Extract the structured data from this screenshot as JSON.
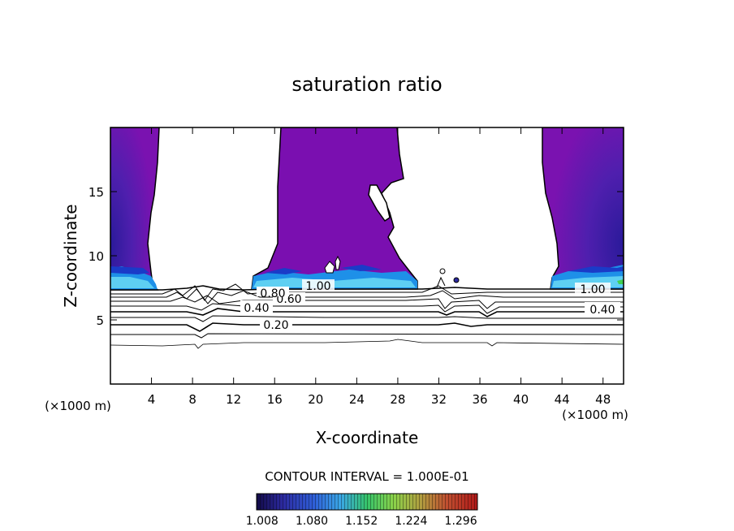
{
  "chart_data": {
    "type": "heatmap",
    "title": "saturation ratio",
    "xlabel": "X-coordinate",
    "ylabel": "Z-coordinate",
    "x_unit_left": "(×1000 m)",
    "x_unit_right": "(×1000 m)",
    "xlim": [
      0,
      50
    ],
    "ylim": [
      0,
      20
    ],
    "x_ticks": [
      4,
      8,
      12,
      16,
      20,
      24,
      28,
      32,
      36,
      40,
      44,
      48
    ],
    "x_tick_labels": [
      "4",
      "8",
      "12",
      "16",
      "20",
      "24",
      "28",
      "32",
      "36",
      "40",
      "44",
      "48"
    ],
    "y_ticks": [
      5,
      10,
      15
    ],
    "y_tick_labels": [
      "5",
      "10",
      "15"
    ],
    "contour_interval_label": "CONTOUR INTERVAL = 1.000E-01",
    "contour_lines": [
      {
        "label": "0.20",
        "z": 4.6
      },
      {
        "label": "0.40",
        "z": 5.9
      },
      {
        "label": "0.60",
        "z": 6.5
      },
      {
        "label": "0.80",
        "z": 6.9
      },
      {
        "label": "1.00",
        "z": 7.3
      }
    ],
    "colorbar": {
      "range": [
        1.0,
        1.32
      ],
      "tick_values": [
        1.008,
        1.08,
        1.152,
        1.224,
        1.296
      ],
      "tick_labels": [
        "1.008",
        "1.080",
        "1.152",
        "1.224",
        "1.296"
      ],
      "colors": [
        "#120a46",
        "#2c2aa0",
        "#2f5fd8",
        "#3aa7e6",
        "#36c46a",
        "#8ad24a",
        "#b0a040",
        "#c05030",
        "#b01818"
      ]
    },
    "cloud_regions": [
      {
        "x": [
          0,
          4.5
        ],
        "z_top": 20,
        "saturation_ratio": 1.02
      },
      {
        "x": [
          14.7,
          30.2
        ],
        "z_top": 20,
        "saturation_ratio": 1.02
      },
      {
        "x": [
          42.8,
          50
        ],
        "z_top": 20,
        "saturation_ratio": 1.02
      }
    ]
  }
}
